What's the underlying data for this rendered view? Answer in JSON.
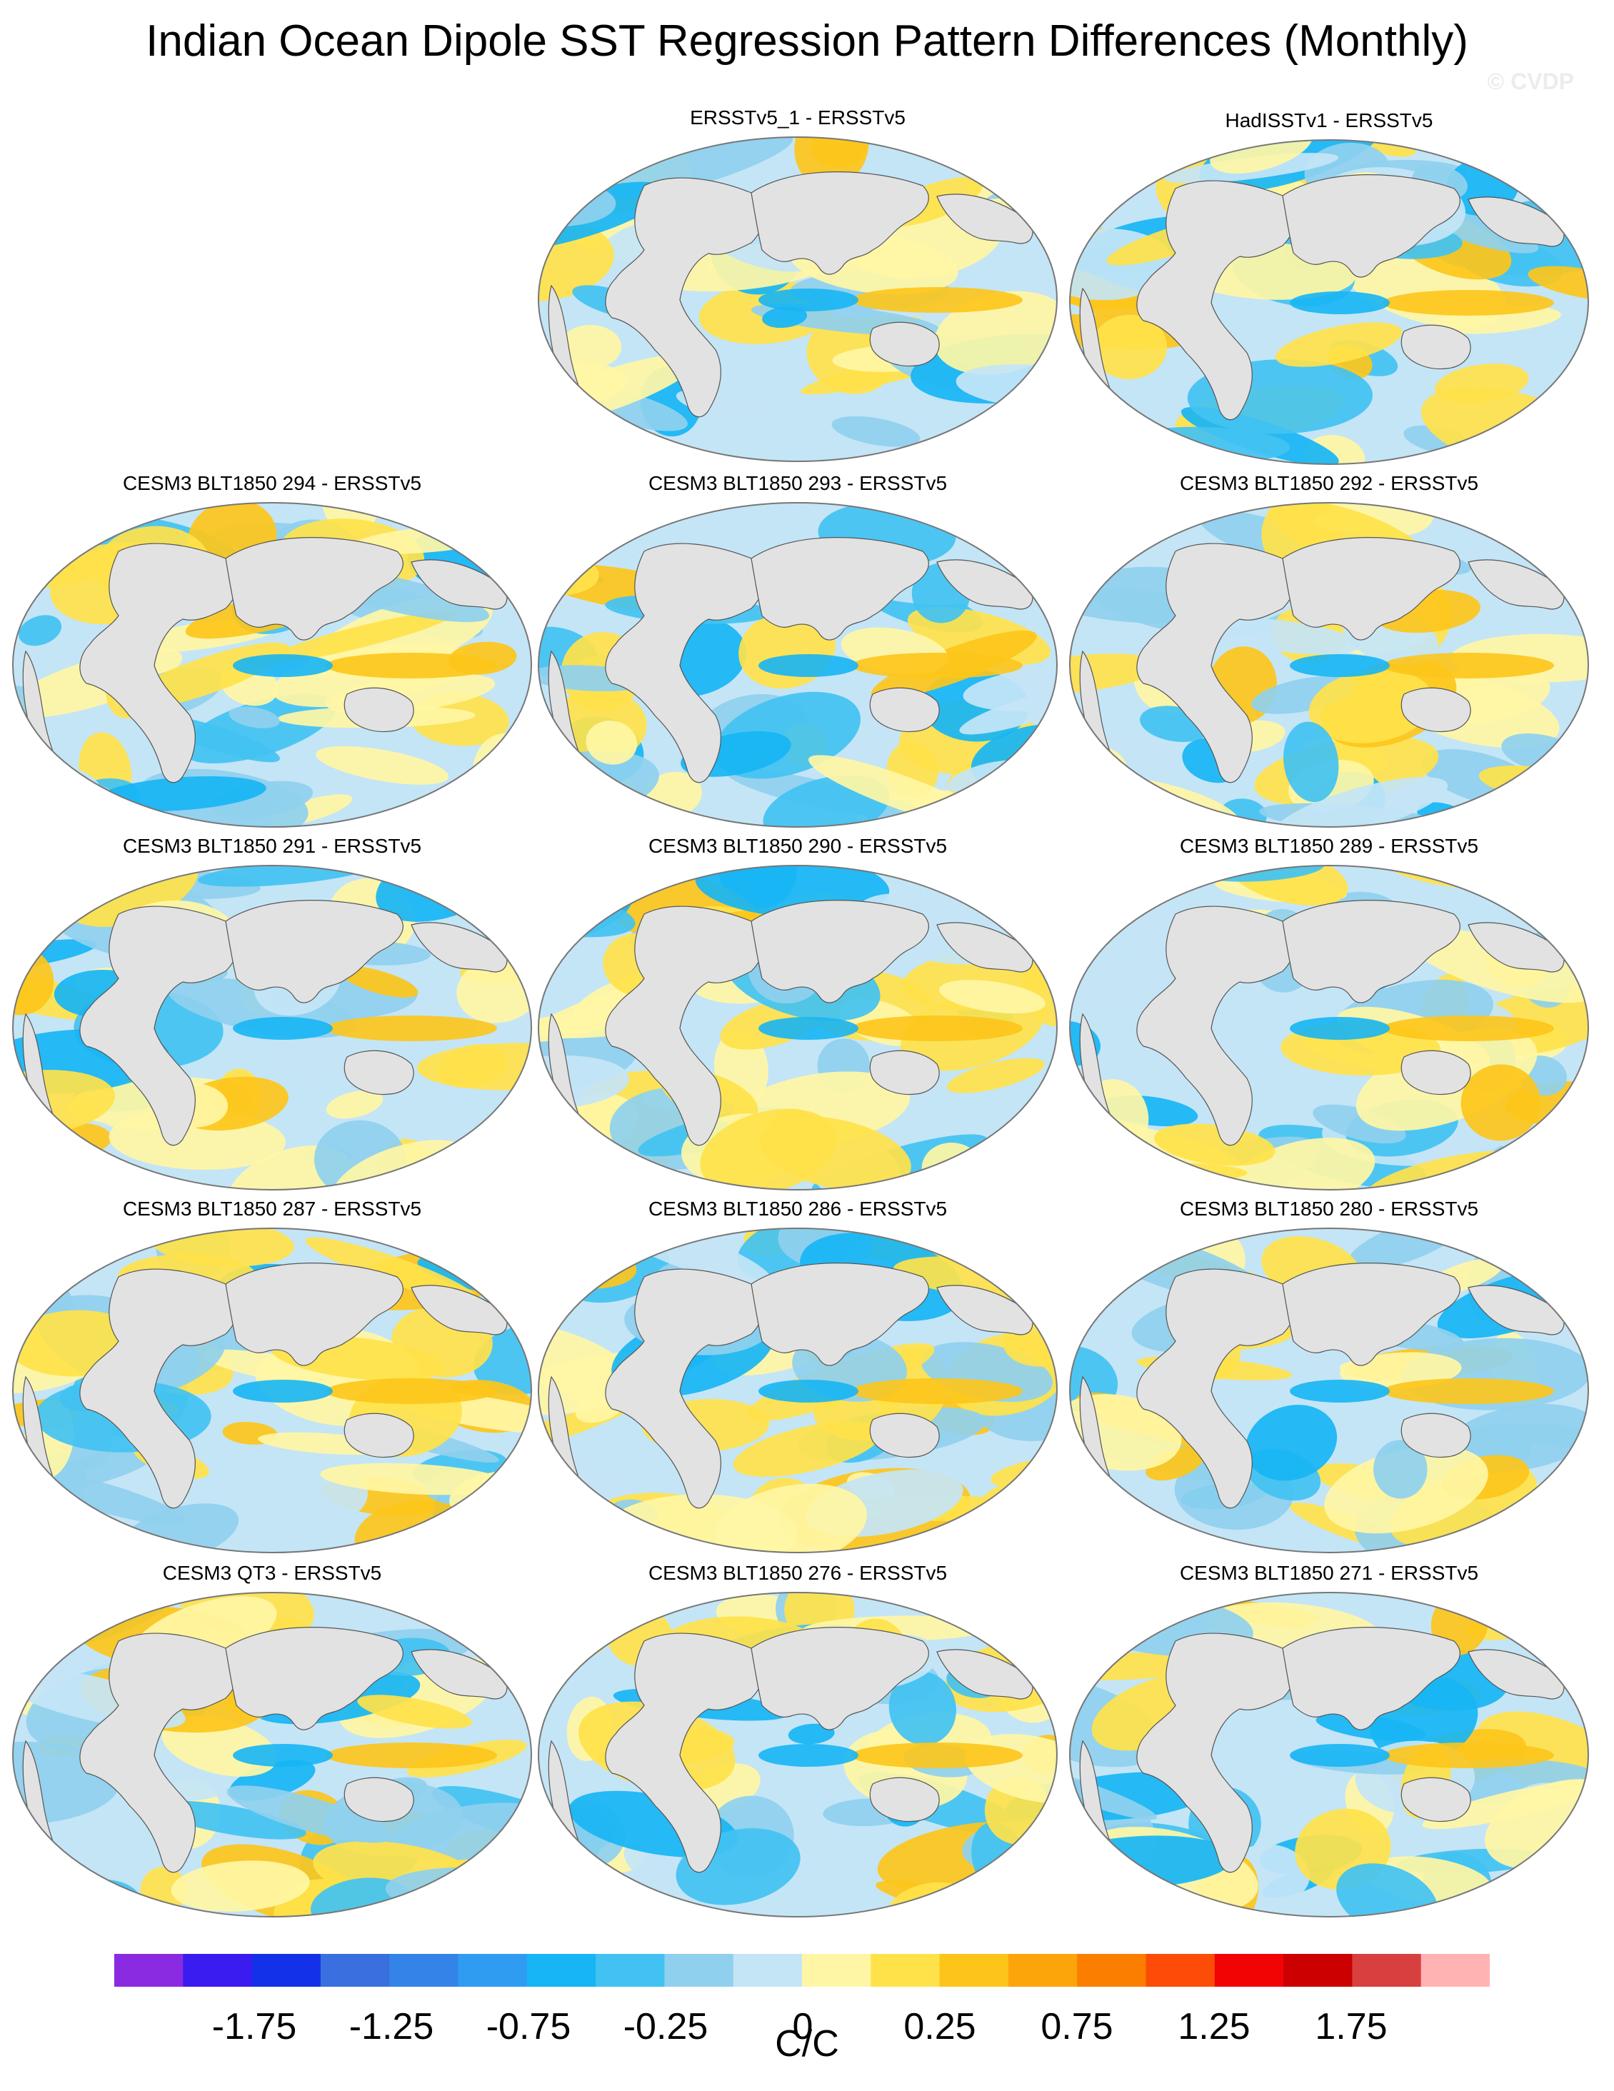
{
  "title": "Indian Ocean Dipole SST Regression Pattern Differences (Monthly)",
  "watermark": "© CVDP",
  "colorbar": {
    "units": "C/C",
    "colors": [
      "#8a2be2",
      "#3a1cf0",
      "#1431ea",
      "#3a6fdf",
      "#3383e8",
      "#2f9cf2",
      "#17b5f4",
      "#42c2f2",
      "#8fd0ee",
      "#c4e5f6",
      "#fff6a5",
      "#ffe24a",
      "#fdc51a",
      "#fca50a",
      "#fc7e00",
      "#fc4c08",
      "#f20404",
      "#cc0000",
      "#d84040",
      "#ffb3b3"
    ],
    "tick_labels": [
      "-1.75",
      "-1.25",
      "-0.75",
      "-0.25",
      "0",
      "0.25",
      "0.75",
      "1.25",
      "1.75"
    ]
  },
  "panels": [
    {
      "title": "ERSSTv5_1 - ERSSTv5"
    },
    {
      "title": "HadISSTv1 - ERSSTv5"
    },
    {
      "title": "CESM3 BLT1850 294 - ERSSTv5"
    },
    {
      "title": "CESM3 BLT1850 293 - ERSSTv5"
    },
    {
      "title": "CESM3 BLT1850 292 - ERSSTv5"
    },
    {
      "title": "CESM3 BLT1850 291 - ERSSTv5"
    },
    {
      "title": "CESM3 BLT1850 290 - ERSSTv5"
    },
    {
      "title": "CESM3 BLT1850 289 - ERSSTv5"
    },
    {
      "title": "CESM3 BLT1850 287 - ERSSTv5"
    },
    {
      "title": "CESM3 BLT1850 286 - ERSSTv5"
    },
    {
      "title": "CESM3 BLT1850 280 - ERSSTv5"
    },
    {
      "title": "CESM3 QT3 - ERSSTv5"
    },
    {
      "title": "CESM3 BLT1850 276 - ERSSTv5"
    },
    {
      "title": "CESM3 BLT1850 271 - ERSSTv5"
    }
  ]
}
